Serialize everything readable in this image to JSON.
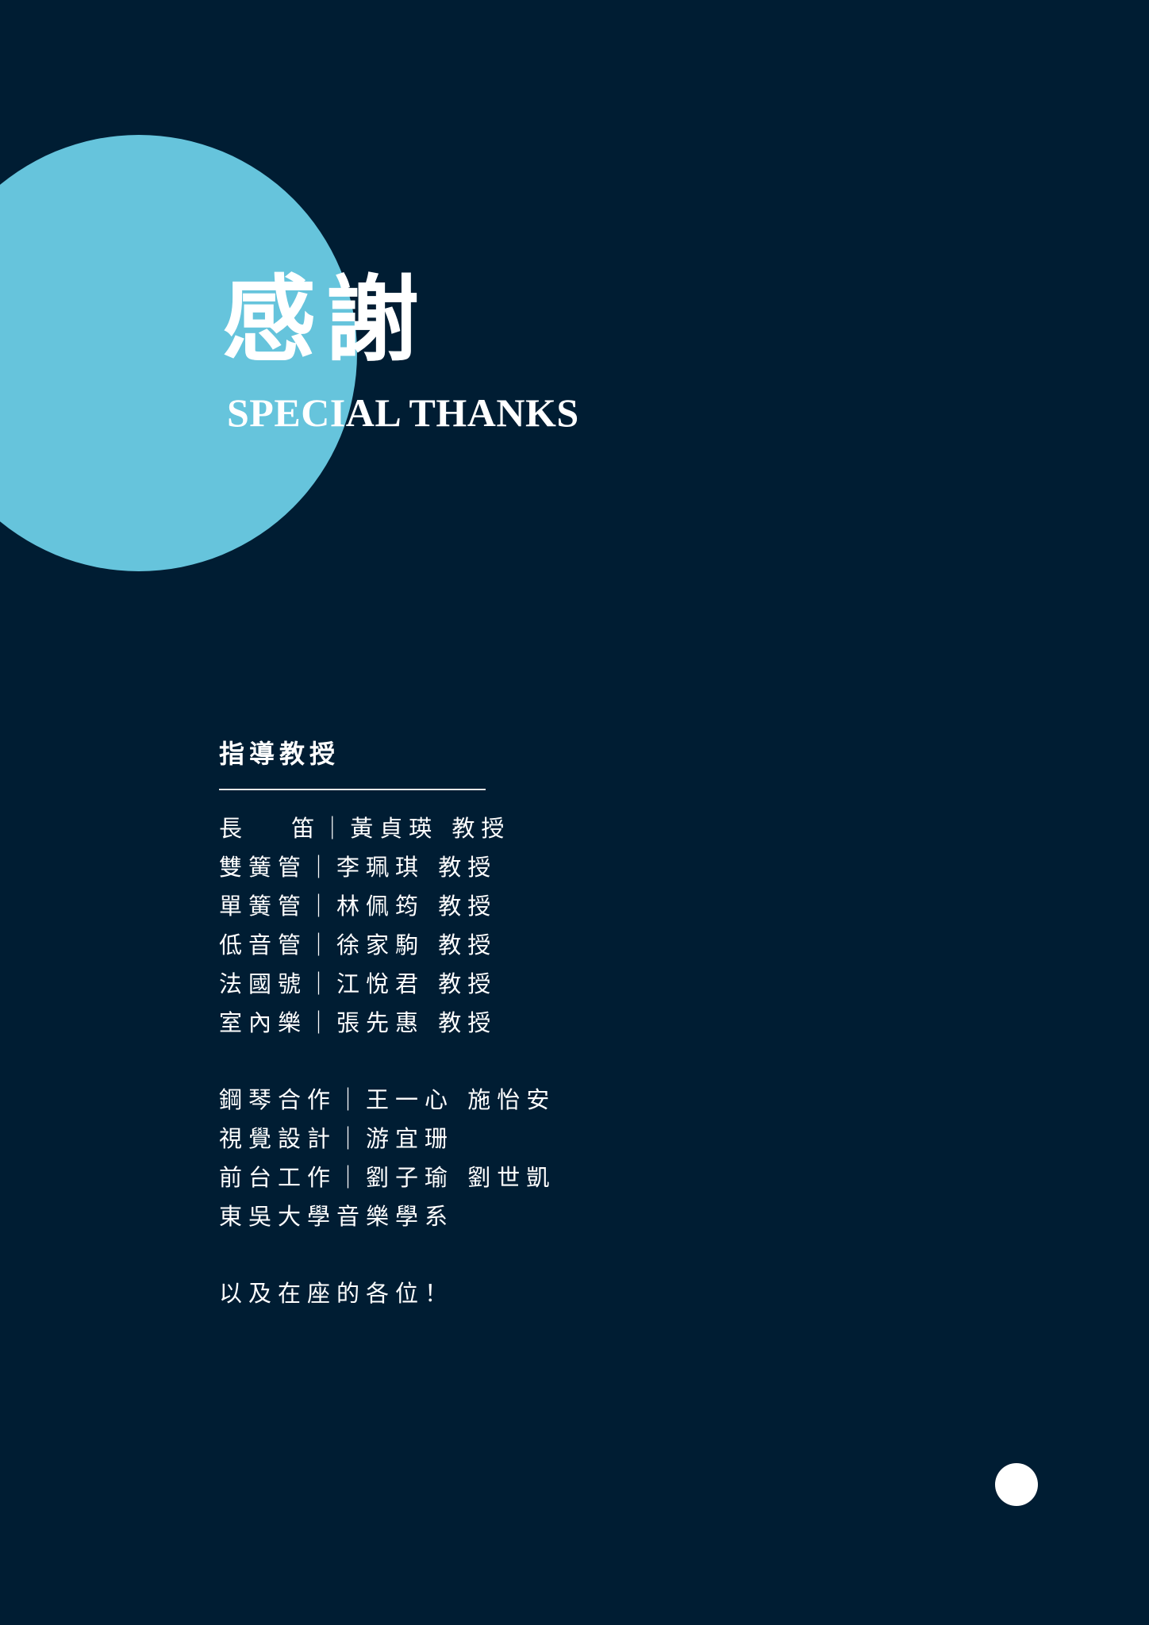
{
  "title": {
    "zh": "感謝",
    "en": "SPECIAL THANKS"
  },
  "advisors": {
    "heading": "指導教授",
    "lines": [
      "長　 笛｜黃貞瑛 教授",
      "雙簧管｜李珮琪 教授",
      "單簧管｜林佩筠 教授",
      "低音管｜徐家駒 教授",
      "法國號｜江悅君 教授",
      "室內樂｜張先惠 教授"
    ]
  },
  "staff": {
    "lines": [
      "鋼琴合作｜王一心 施怡安",
      "視覺設計｜游宜珊",
      "前台工作｜劉子瑜 劉世凱",
      "東吳大學音樂學系"
    ]
  },
  "closing": "以及在座的各位！",
  "colors": {
    "background": "#001d33",
    "accent_circle": "#66c4dc",
    "text": "#ffffff"
  }
}
